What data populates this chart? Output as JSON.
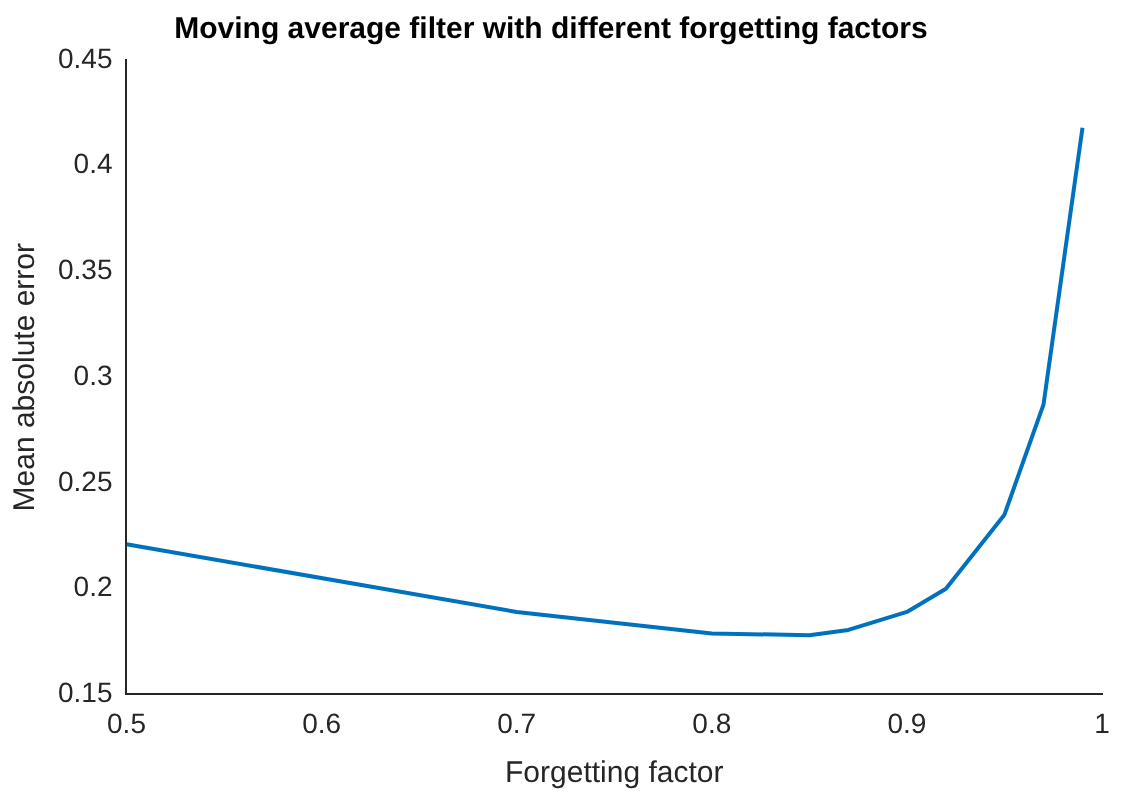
{
  "chart_data": {
    "type": "line",
    "title": "Moving average filter with different forgetting factors",
    "xlabel": "Forgetting factor",
    "ylabel": "Mean absolute error",
    "x": [
      0.5,
      0.7,
      0.8,
      0.85,
      0.87,
      0.9,
      0.92,
      0.95,
      0.97,
      0.99
    ],
    "series": [
      {
        "color": "#0072bd",
        "values": [
          0.221,
          0.189,
          0.1788,
          0.178,
          0.1805,
          0.189,
          0.2,
          0.235,
          0.287,
          0.418
        ]
      }
    ],
    "xlim": [
      0.5,
      1
    ],
    "xticks": [
      0.5,
      0.6,
      0.7,
      0.8,
      0.9,
      1
    ],
    "ylim": [
      0.15,
      0.45
    ],
    "yticks": [
      0.15,
      0.2,
      0.25,
      0.3,
      0.35,
      0.4,
      0.45
    ],
    "grid": false,
    "legend": false,
    "marker": "none",
    "line_style": "solid"
  }
}
